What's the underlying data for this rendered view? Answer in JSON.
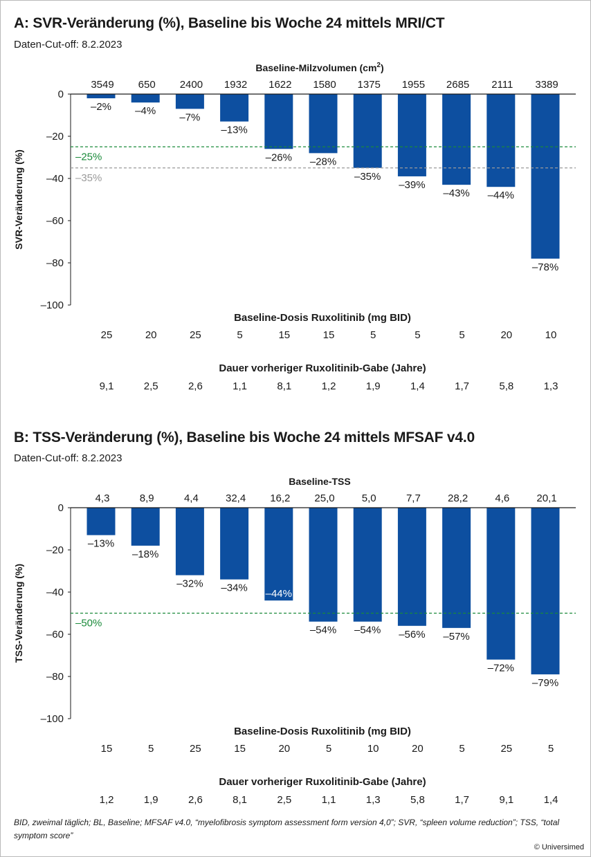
{
  "colors": {
    "bar": "#0d4fa0",
    "target_green": "#1a8a3a",
    "target_gray": "#9a9a9a"
  },
  "chart_data": [
    {
      "type": "bar",
      "title": "A: SVR-Veränderung (%), Baseline bis Woche 24 mittels MRI/CT",
      "subtitle": "Daten-Cut-off: 8.2.2023",
      "ylabel": "SVR-Veränderung (%)",
      "ylim": [
        -100,
        0
      ],
      "yticks": [
        "0",
        "–20",
        "–40",
        "–60",
        "–80",
        "–100"
      ],
      "ytick_values": [
        0,
        -20,
        -40,
        -60,
        -80,
        -100
      ],
      "top_row_label_main": "Baseline-Milzvolumen (cm",
      "top_row_label_sup": "2",
      "top_row_label_close": ")",
      "top_row": [
        "3549",
        "650",
        "2400",
        "1932",
        "1622",
        "1580",
        "1375",
        "1955",
        "2685",
        "2111",
        "3389"
      ],
      "values": [
        -2,
        -4,
        -7,
        -13,
        -26,
        -28,
        -35,
        -39,
        -43,
        -44,
        -78
      ],
      "value_labels": [
        "–2%",
        "–4%",
        "–7%",
        "–13%",
        "–26%",
        "–28%",
        "–35%",
        "–39%",
        "–43%",
        "–44%",
        "–78%"
      ],
      "reference_lines": [
        {
          "value": -25,
          "label": "–25%",
          "color": "#1a8a3a"
        },
        {
          "value": -35,
          "label": "–35%",
          "color": "#9a9a9a"
        }
      ],
      "dose_label": "Baseline-Dosis Ruxolitinib (mg BID)",
      "dose": [
        "25",
        "20",
        "25",
        "5",
        "15",
        "15",
        "5",
        "5",
        "5",
        "20",
        "10"
      ],
      "duration_label": "Dauer vorheriger Ruxolitinib-Gabe (Jahre)",
      "duration": [
        "9,1",
        "2,5",
        "2,6",
        "1,1",
        "8,1",
        "1,2",
        "1,9",
        "1,4",
        "1,7",
        "5,8",
        "1,3"
      ],
      "grid": false
    },
    {
      "type": "bar",
      "title": "B: TSS-Veränderung (%), Baseline bis Woche 24 mittels MFSAF v4.0",
      "subtitle": "Daten-Cut-off: 8.2.2023",
      "ylabel": "TSS-Veränderung (%)",
      "ylim": [
        -100,
        0
      ],
      "yticks": [
        "0",
        "–20",
        "–40",
        "–60",
        "–80",
        "–100"
      ],
      "ytick_values": [
        0,
        -20,
        -40,
        -60,
        -80,
        -100
      ],
      "top_row_label_main": "Baseline-TSS",
      "top_row_label_sup": "",
      "top_row_label_close": "",
      "top_row": [
        "4,3",
        "8,9",
        "4,4",
        "32,4",
        "16,2",
        "25,0",
        "5,0",
        "7,7",
        "28,2",
        "4,6",
        "20,1"
      ],
      "values": [
        -13,
        -18,
        -32,
        -34,
        -44,
        -54,
        -54,
        -56,
        -57,
        -72,
        -79
      ],
      "value_labels": [
        "–13%",
        "–18%",
        "–32%",
        "–34%",
        "–44%",
        "–54%",
        "–54%",
        "–56%",
        "–57%",
        "–72%",
        "–79%"
      ],
      "inside_label_index": 4,
      "reference_lines": [
        {
          "value": -50,
          "label": "–50%",
          "color": "#1a8a3a"
        }
      ],
      "dose_label": "Baseline-Dosis Ruxolitinib (mg BID)",
      "dose": [
        "15",
        "5",
        "25",
        "15",
        "20",
        "5",
        "10",
        "20",
        "5",
        "25",
        "5"
      ],
      "duration_label": "Dauer vorheriger Ruxolitinib-Gabe (Jahre)",
      "duration": [
        "1,2",
        "1,9",
        "2,6",
        "8,1",
        "2,5",
        "1,1",
        "1,3",
        "5,8",
        "1,7",
        "9,1",
        "1,4"
      ],
      "grid": false
    }
  ],
  "footnote": "BID, zweimal täglich; BL, Baseline; MFSAF v4.0, “myelofibrosis symptom assessment form version 4,0”; SVR, “spleen volume reduction”; TSS, “total symptom score”",
  "copyright": "© Universimed"
}
